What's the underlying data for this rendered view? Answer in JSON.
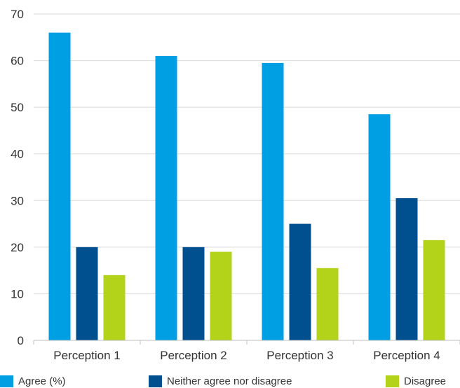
{
  "chart_data": {
    "type": "bar",
    "categories": [
      "Perception 1",
      "Perception 2",
      "Perception 3",
      "Perception 4"
    ],
    "series": [
      {
        "name": "Agree (%)",
        "values": [
          66,
          61,
          59.5,
          48.5
        ],
        "color": "#009fe3"
      },
      {
        "name": "Neither agree nor disagree",
        "values": [
          20,
          20,
          25,
          30.5
        ],
        "color": "#004f8f"
      },
      {
        "name": "Disagree",
        "values": [
          14,
          19,
          15.5,
          21.5
        ],
        "color": "#b2d31a"
      }
    ],
    "ylim": [
      0,
      70
    ],
    "yticks": [
      0,
      10,
      20,
      30,
      40,
      50,
      60,
      70
    ],
    "grid": true,
    "legend": "bottom"
  }
}
